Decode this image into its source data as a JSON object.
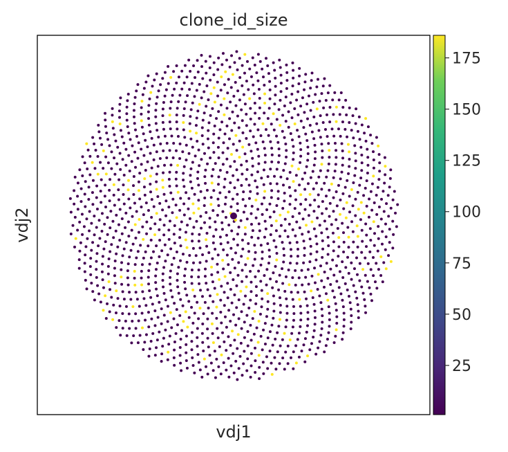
{
  "chart_data": {
    "type": "scatter",
    "title": "clone_id_size",
    "xlabel": "vdj1",
    "ylabel": "vdj2",
    "grid": false,
    "layout": "spiral",
    "series": [
      {
        "values": [
          {
            "x": 0,
            "y": 0,
            "size": 3
          },
          {
            "x": 0.012,
            "y": -0.025,
            "size": 186
          }
        ]
      }
    ],
    "points_total": 1800,
    "highlight_fraction": 0.08,
    "colorbar": {
      "min": 1,
      "max": 186,
      "ticks": [
        25,
        50,
        75,
        100,
        125,
        150,
        175
      ],
      "colormap": "viridis"
    }
  }
}
